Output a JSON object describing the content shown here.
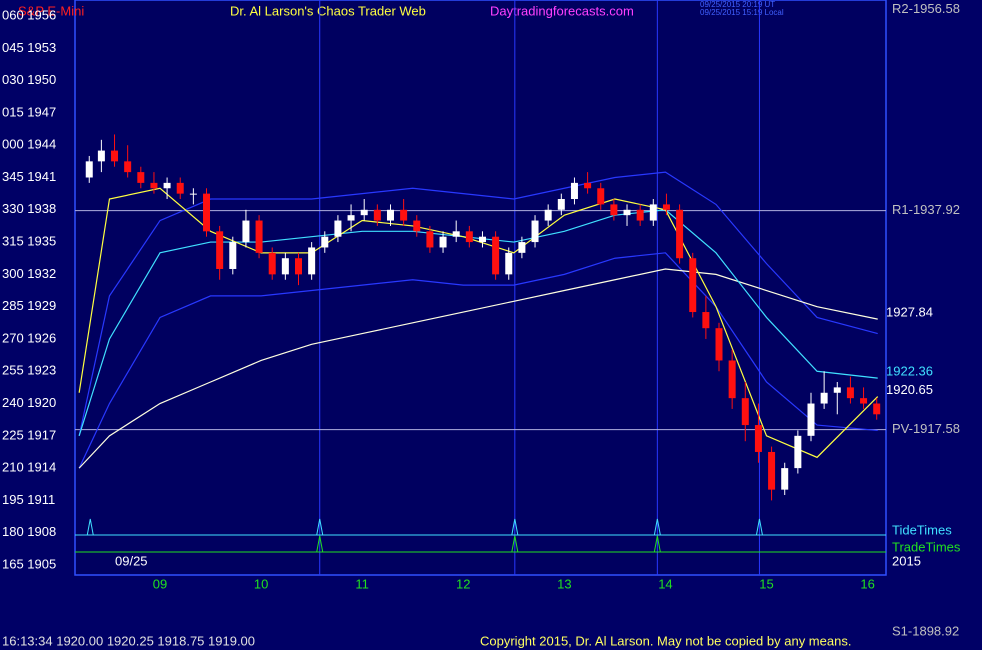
{
  "chart_data": {
    "type": "candlestick",
    "title": "Dr. Al Larson's Chaos Trader Web",
    "symbol": "S&P E-Mini",
    "site": "Daytradingforecasts.com",
    "timestamp_ut": "09/25/2015 20:19 UT",
    "timestamp_local": "09/25/2015 15:19 Local",
    "date_label": "09/25",
    "year_label": "2015",
    "status": "16:13:34  1920.00 1920.25 1918.75 1919.00",
    "copyright": "Copyright 2015, Dr. Al Larson. May not be copied by any means.",
    "xlim": [
      8.159,
      16.182
    ],
    "ylim": [
      1904.07,
      1957.49
    ],
    "xticks": [
      {
        "value": 9,
        "label": "09"
      },
      10,
      11,
      12,
      13,
      14,
      15,
      16
    ],
    "yticks": [
      {
        "value": 1956,
        "label": "060 1956"
      },
      {
        "value": 1953,
        "label": "045 1953"
      },
      {
        "value": 1950,
        "label": "030 1950"
      },
      {
        "value": 1947,
        "label": "015 1947"
      },
      {
        "value": 1944,
        "label": "000 1944"
      },
      {
        "value": 1941,
        "label": "345 1941"
      },
      {
        "value": 1938,
        "label": "330 1938"
      },
      {
        "value": 1935,
        "label": "315 1935"
      },
      {
        "value": 1932,
        "label": "300 1932"
      },
      {
        "value": 1929,
        "label": "285 1929"
      },
      {
        "value": 1926,
        "label": "270 1926"
      },
      {
        "value": 1923,
        "label": "255 1923"
      },
      {
        "value": 1920,
        "label": "240 1920"
      },
      {
        "value": 1917,
        "label": "225 1917"
      },
      {
        "value": 1914,
        "label": "210 1914"
      },
      {
        "value": 1911,
        "label": "195 1911"
      },
      {
        "value": 1908,
        "label": "180 1908"
      },
      {
        "value": 1905,
        "label": "165 1905"
      }
    ],
    "up_color": "#ffffff",
    "down_color": "#ff1010",
    "candles": {
      "x": [
        8.3,
        8.42,
        8.55,
        8.68,
        8.81,
        8.94,
        9.07,
        9.2,
        9.33,
        9.46,
        9.59,
        9.72,
        9.85,
        9.98,
        10.11,
        10.24,
        10.37,
        10.5,
        10.63,
        10.76,
        10.89,
        11.02,
        11.15,
        11.28,
        11.41,
        11.54,
        11.67,
        11.8,
        11.93,
        12.06,
        12.19,
        12.32,
        12.45,
        12.58,
        12.71,
        12.84,
        12.97,
        13.1,
        13.23,
        13.36,
        13.49,
        13.62,
        13.75,
        13.88,
        14.01,
        14.14,
        14.27,
        14.4,
        14.53,
        14.66,
        14.79,
        14.92,
        15.05,
        15.18,
        15.31,
        15.44,
        15.57,
        15.7,
        15.83,
        15.96,
        16.09
      ],
      "open": [
        1941,
        1942.5,
        1943.5,
        1942.5,
        1941.5,
        1940.5,
        1940,
        1940.5,
        1939.5,
        1939.5,
        1936,
        1932.5,
        1935,
        1937,
        1934,
        1932,
        1933.5,
        1932,
        1934.5,
        1935.5,
        1937,
        1937.5,
        1938,
        1937,
        1938,
        1937,
        1936,
        1934.5,
        1935.5,
        1936,
        1935,
        1935.5,
        1932,
        1934,
        1935,
        1937,
        1938,
        1939,
        1940.5,
        1940,
        1938.5,
        1937.5,
        1938,
        1937,
        1938.5,
        1938,
        1933.5,
        1928.5,
        1927,
        1924,
        1920.5,
        1918,
        1915.5,
        1912,
        1914,
        1917,
        1920,
        1921,
        1921.5,
        1920.5,
        1920
      ],
      "high": [
        1943,
        1944.5,
        1945,
        1944,
        1942,
        1941.5,
        1941,
        1941,
        1940,
        1940,
        1936.5,
        1935.5,
        1938,
        1937.5,
        1934.5,
        1934,
        1934,
        1935,
        1936,
        1937.5,
        1938.5,
        1939,
        1938.5,
        1938.5,
        1939,
        1937.5,
        1936.5,
        1936,
        1937,
        1936.5,
        1936,
        1936,
        1934.5,
        1935.5,
        1937.5,
        1938.5,
        1939.5,
        1941,
        1941.5,
        1940.5,
        1939,
        1938.5,
        1938.5,
        1939,
        1939.5,
        1938.5,
        1934,
        1930,
        1927.5,
        1925,
        1922,
        1920,
        1916,
        1914.5,
        1917.5,
        1921,
        1923,
        1922,
        1922.5,
        1921.5,
        1920.5
      ],
      "low": [
        1940.5,
        1941.5,
        1942,
        1941,
        1940,
        1939.5,
        1939,
        1939,
        1938.5,
        1935.5,
        1931.5,
        1932,
        1934.5,
        1933.5,
        1931.5,
        1931.5,
        1931,
        1931.5,
        1934,
        1935,
        1936,
        1937,
        1936.5,
        1936.5,
        1936.5,
        1935.5,
        1934,
        1934,
        1935,
        1934.5,
        1934.5,
        1931.5,
        1931.5,
        1933.5,
        1934.5,
        1936.5,
        1937.5,
        1938.5,
        1939.5,
        1938,
        1937,
        1936.5,
        1936.5,
        1936.5,
        1937.5,
        1933,
        1928,
        1926,
        1923,
        1919.5,
        1916.5,
        1914.5,
        1911,
        1911.5,
        1913.5,
        1916.5,
        1919.5,
        1919,
        1920,
        1919.5,
        1918.5
      ],
      "close": [
        1942.5,
        1943.5,
        1942.5,
        1941.5,
        1940.5,
        1940,
        1940.5,
        1939.5,
        1939.5,
        1936,
        1932.5,
        1935,
        1937,
        1934,
        1932,
        1933.5,
        1932,
        1934.5,
        1935.5,
        1937,
        1937.5,
        1938,
        1937,
        1938,
        1937,
        1936,
        1934.5,
        1935.5,
        1936,
        1935,
        1935.5,
        1932,
        1934,
        1935,
        1937,
        1938,
        1939,
        1940.5,
        1940,
        1938.5,
        1937.5,
        1938,
        1937,
        1938.5,
        1938,
        1933.5,
        1928.5,
        1927,
        1924,
        1920.5,
        1918,
        1915.5,
        1912,
        1914,
        1917,
        1920,
        1921,
        1921.5,
        1920.5,
        1920,
        1919
      ]
    },
    "lines_x": [
      8.2,
      8.5,
      9,
      9.5,
      10,
      10.5,
      11,
      11.5,
      12,
      12.5,
      13,
      13.5,
      14,
      14.5,
      15,
      15.5,
      16.1
    ],
    "lines": [
      {
        "color": "#2838ff",
        "values": [
          1917,
          1930,
          1937,
          1939,
          1939,
          1939,
          1939.5,
          1940,
          1939.5,
          1939,
          1940,
          1941,
          1941.5,
          1938.5,
          1933,
          1928,
          1926.5
        ]
      },
      {
        "color": "#2838ff",
        "values": [
          1914,
          1920,
          1928,
          1930,
          1930,
          1930.5,
          1931,
          1931.5,
          1931,
          1931,
          1932,
          1933.5,
          1934,
          1929,
          1922,
          1918,
          1917.5
        ]
      },
      {
        "color": "#ffffe0",
        "values": [
          1914,
          1917,
          1920,
          1922,
          1924,
          1925.5,
          1926.5,
          1927.5,
          1928.5,
          1929.5,
          1930.5,
          1931.5,
          1932.5,
          1932,
          1930.5,
          1929,
          1927.84
        ]
      },
      {
        "color": "#40e0ff",
        "values": [
          1917,
          1926,
          1934,
          1935,
          1935,
          1935.5,
          1936,
          1936,
          1935.5,
          1935,
          1936,
          1937.5,
          1938,
          1934,
          1928,
          1923,
          1922.36
        ]
      },
      {
        "color": "#ffff40",
        "values": [
          1921,
          1939,
          1940,
          1936,
          1934,
          1934,
          1937,
          1936.5,
          1935.5,
          1934,
          1937.5,
          1939,
          1938,
          1929,
          1917,
          1915,
          1920.65
        ]
      }
    ],
    "end_labels": [
      {
        "value": 1927.84,
        "color": "#ffffff"
      },
      {
        "value": 1922.36,
        "color": "#40e0ff"
      },
      {
        "value": 1920.65,
        "color": "#ffffff"
      }
    ],
    "levels": [
      {
        "label": "R2-1956.58",
        "value": 1956.58
      },
      {
        "label": "R1-1937.92",
        "value": 1937.92
      },
      {
        "label": "PV-1917.58",
        "value": 1917.58
      },
      {
        "label": "S1-1898.92",
        "value": 1898.92
      }
    ],
    "vlines": [
      10.58,
      12.51,
      13.92,
      14.93
    ],
    "tide": {
      "label": "TideTimes",
      "color": "#40e0ff",
      "x": [
        8.31,
        10.58,
        12.51,
        13.92,
        14.93
      ]
    },
    "trade": {
      "label": "TradeTimes",
      "color": "#20e020",
      "x": [
        10.58,
        12.51,
        13.92
      ]
    }
  }
}
